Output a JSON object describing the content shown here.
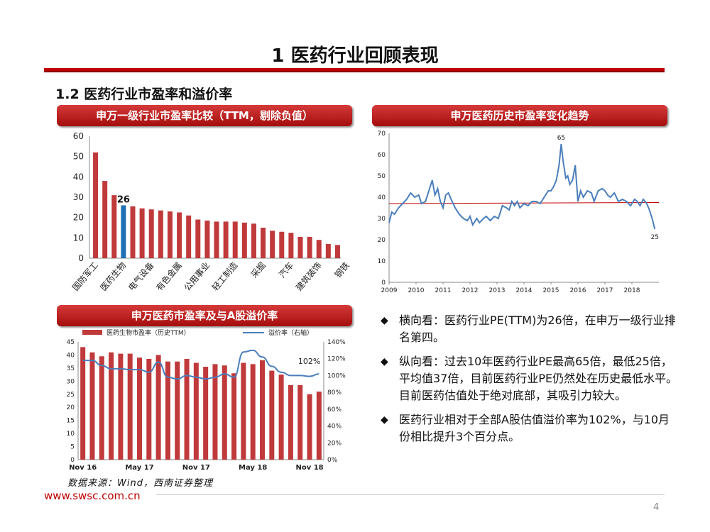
{
  "page_title": "1 医药行业回顾表现",
  "section_title": "1.2 医药行业市盈率和溢价率",
  "banners": {
    "left_top": "申万一级行业市盈率比较（TTM，剔除负值）",
    "right_top": "申万医药历史市盈率变化趋势",
    "left_bottom": "申万医药市盈率及与A股溢价率"
  },
  "bullets": [
    "横向看：医药行业PE(TTM)为26倍，在申万一级行业排名第四。",
    "纵向看：过去10年医药行业PE最高65倍，最低25倍，平均值37倍，目前医药行业PE仍然处在历史最低水平。目前医药估值处于绝对底部，其吸引力较大。",
    "医药行业相对于全部A股估值溢价率为102%，与10月份相比提升3个百分点。"
  ],
  "bullet_icon": "diamond-icon",
  "source": "数据来源：Wind，西南证券整理",
  "url": "www.swsc.com.cn",
  "page_number": "4",
  "colors": {
    "accent": "#c00000",
    "bar": "#c0393b",
    "highlight_bar": "#1f6fb5",
    "line": "#4a7ebb"
  },
  "chart_data": [
    {
      "type": "bar",
      "title": "申万一级行业市盈率比较（TTM，剔除负值）",
      "ylim": [
        0,
        60
      ],
      "yticks": [
        "0",
        "10",
        "20",
        "30",
        "40",
        "50",
        "60"
      ],
      "values": [
        52,
        38,
        31,
        26,
        25.5,
        24.5,
        24,
        23.5,
        23,
        22.5,
        21,
        19,
        18.5,
        18,
        18,
        18,
        17.5,
        17,
        15,
        13.5,
        13,
        12.5,
        10.5,
        10.5,
        9,
        7,
        6.5
      ],
      "highlight_index": 3,
      "highlight_label": "26",
      "x_labels": [
        "国防军工",
        "医药生物",
        "电气设备",
        "有色金属",
        "公用事业",
        "轻工制造",
        "采掘",
        "汽车",
        "建筑装饰",
        "钢铁"
      ]
    },
    {
      "type": "line",
      "title": "申万医药历史市盈率变化趋势",
      "ylim": [
        0,
        70
      ],
      "yticks": [
        "0",
        "10",
        "20",
        "30",
        "40",
        "50",
        "60",
        "70"
      ],
      "x_ticks": [
        "2009",
        "2010",
        "2011",
        "2012",
        "2013",
        "2014",
        "2015",
        "2016",
        "2017",
        "2018"
      ],
      "x_range": [
        2009,
        2019
      ],
      "mean_line": 37,
      "labels": {
        "max": "65",
        "last": "25"
      },
      "x": [
        2009.0,
        2009.1,
        2009.2,
        2009.35,
        2009.5,
        2009.65,
        2009.8,
        2009.95,
        2010.1,
        2010.2,
        2010.35,
        2010.45,
        2010.6,
        2010.7,
        2010.8,
        2010.9,
        2011.0,
        2011.1,
        2011.2,
        2011.3,
        2011.45,
        2011.6,
        2011.75,
        2011.9,
        2012.0,
        2012.1,
        2012.25,
        2012.35,
        2012.5,
        2012.6,
        2012.75,
        2012.9,
        2013.05,
        2013.2,
        2013.35,
        2013.45,
        2013.55,
        2013.65,
        2013.75,
        2013.85,
        2014.0,
        2014.15,
        2014.3,
        2014.45,
        2014.6,
        2014.75,
        2014.9,
        2015.0,
        2015.1,
        2015.2,
        2015.3,
        2015.38,
        2015.45,
        2015.55,
        2015.62,
        2015.7,
        2015.8,
        2015.9,
        2016.0,
        2016.1,
        2016.2,
        2016.35,
        2016.5,
        2016.6,
        2016.75,
        2016.9,
        2017.0,
        2017.1,
        2017.2,
        2017.35,
        2017.5,
        2017.65,
        2017.8,
        2017.95,
        2018.1,
        2018.2,
        2018.3,
        2018.42,
        2018.55,
        2018.65,
        2018.75,
        2018.85
      ],
      "values": [
        28,
        33,
        32,
        35,
        37,
        39,
        42,
        40,
        41,
        37,
        38,
        42,
        48,
        41,
        44,
        38,
        35,
        41,
        42,
        39,
        35,
        32,
        30,
        29,
        31,
        27,
        30,
        28,
        30,
        31,
        29,
        31,
        30,
        36,
        35,
        34,
        38,
        36,
        38,
        35,
        37,
        36,
        38,
        38,
        37,
        40,
        43,
        43,
        45,
        48,
        55,
        65,
        57,
        49,
        50,
        46,
        48,
        55,
        38,
        43,
        40,
        43,
        42,
        38,
        43,
        44,
        43,
        41,
        40,
        42,
        38,
        39,
        38,
        36,
        39,
        38,
        36,
        39,
        37,
        34,
        30,
        25
      ]
    },
    {
      "type": "bar+line",
      "title": "申万医药市盈率及与A股溢价率",
      "legend": [
        "医药生物市盈率（历史TTM）",
        "溢价率（右轴）"
      ],
      "ylim": [
        0,
        45
      ],
      "yticks": [
        "0",
        "5",
        "10",
        "15",
        "20",
        "25",
        "30",
        "35",
        "40",
        "45"
      ],
      "y2ticks": [
        "0%",
        "20%",
        "40%",
        "60%",
        "80%",
        "100%",
        "120%",
        "140%"
      ],
      "y2lim": [
        0,
        140
      ],
      "x_ticks": [
        "Nov 16",
        "May 17",
        "Nov 17",
        "May 18",
        "Nov 18"
      ],
      "series": [
        {
          "name": "医药生物市盈率（历史TTM）",
          "values": [
            43,
            41,
            39.5,
            41,
            40.5,
            40.5,
            39,
            38.5,
            40,
            37.5,
            37.5,
            38.5,
            37,
            35.5,
            36.5,
            36,
            33,
            37,
            36.5,
            38,
            34,
            32.5,
            28.5,
            28.5,
            25,
            26
          ]
        },
        {
          "name": "溢价率（右轴）",
          "values": [
            118,
            118,
            112,
            108,
            108,
            107,
            107,
            104,
            116,
            98,
            96,
            100,
            98,
            96,
            98,
            102,
            98,
            128,
            130,
            122,
            111,
            104,
            100,
            100,
            99,
            102
          ]
        }
      ],
      "annotation": "102%"
    }
  ]
}
